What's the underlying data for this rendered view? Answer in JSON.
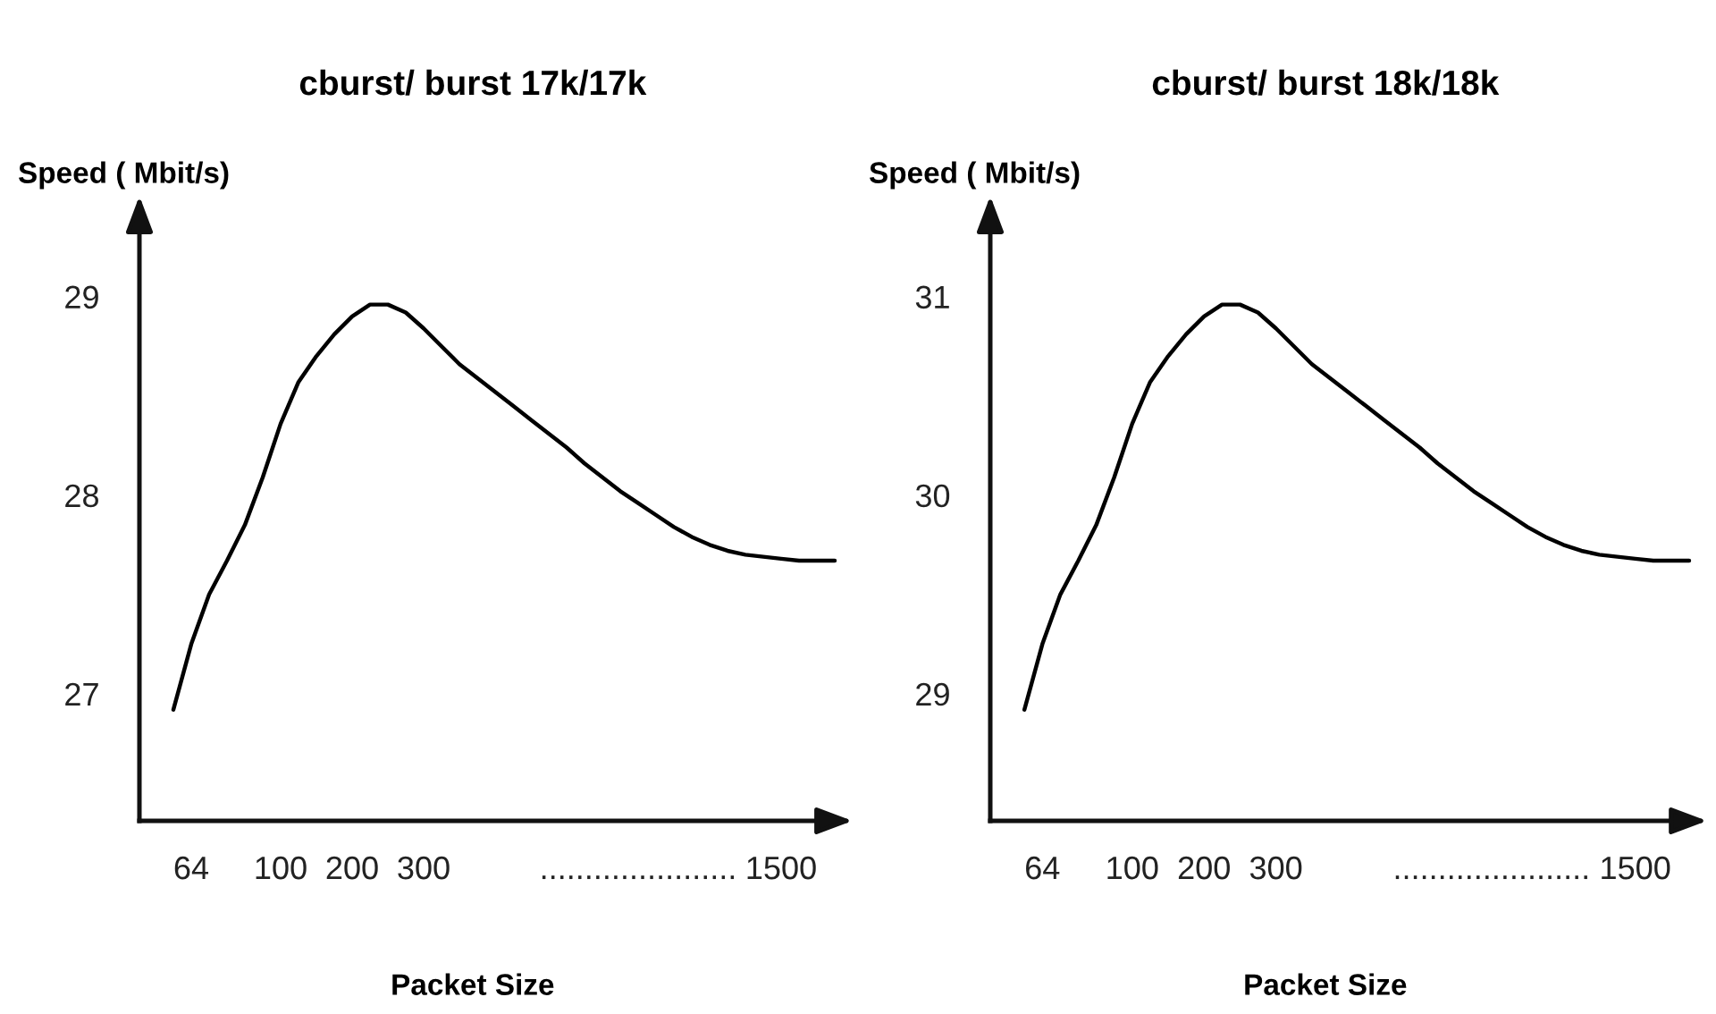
{
  "chart_data": [
    {
      "type": "line",
      "title": "cburst/ burst 17k/17k",
      "xlabel": "Packet Size",
      "ylabel": "Speed ( Mbit/s)",
      "categories": [
        null,
        "64",
        null,
        null,
        null,
        null,
        "100",
        null,
        null,
        null,
        "200",
        null,
        null,
        null,
        "300",
        null,
        null,
        null,
        null,
        null,
        null,
        null,
        null,
        null,
        null,
        null,
        "......................",
        null,
        null,
        null,
        null,
        null,
        null,
        null,
        "1500",
        null,
        null,
        null
      ],
      "series": [
        {
          "color": "#000000",
          "values": [
            26.92,
            27.25,
            27.5,
            27.67,
            27.85,
            28.09,
            28.36,
            28.57,
            28.7,
            28.81,
            28.9,
            28.96,
            28.96,
            28.92,
            28.84,
            28.75,
            28.66,
            28.59,
            28.52,
            28.45,
            28.38,
            28.31,
            28.24,
            28.16,
            28.09,
            28.02,
            27.96,
            27.9,
            27.84,
            27.79,
            27.75,
            27.72,
            27.7,
            27.69,
            27.68,
            27.67,
            27.67,
            27.67
          ]
        }
      ],
      "ylim": [
        26.36,
        29.44
      ],
      "yticks": [
        27,
        28,
        29
      ]
    },
    {
      "type": "line",
      "title": "cburst/ burst 18k/18k",
      "xlabel": "Packet Size",
      "ylabel": "Speed ( Mbit/s)",
      "categories": [
        null,
        "64",
        null,
        null,
        null,
        null,
        "100",
        null,
        null,
        null,
        "200",
        null,
        null,
        null,
        "300",
        null,
        null,
        null,
        null,
        null,
        null,
        null,
        null,
        null,
        null,
        null,
        "......................",
        null,
        null,
        null,
        null,
        null,
        null,
        null,
        "1500",
        null,
        null,
        null
      ],
      "series": [
        {
          "color": "#000000",
          "values": [
            28.92,
            29.25,
            29.5,
            29.67,
            29.85,
            30.09,
            30.36,
            30.57,
            30.7,
            30.81,
            30.9,
            30.96,
            30.96,
            30.92,
            30.84,
            30.75,
            30.66,
            30.59,
            30.52,
            30.45,
            30.38,
            30.31,
            30.24,
            30.16,
            30.09,
            30.02,
            29.96,
            29.9,
            29.84,
            29.79,
            29.75,
            29.72,
            29.7,
            29.69,
            29.68,
            29.67,
            29.67,
            29.67
          ]
        }
      ],
      "ylim": [
        28.36,
        31.44
      ],
      "yticks": [
        29,
        30,
        31
      ]
    }
  ]
}
